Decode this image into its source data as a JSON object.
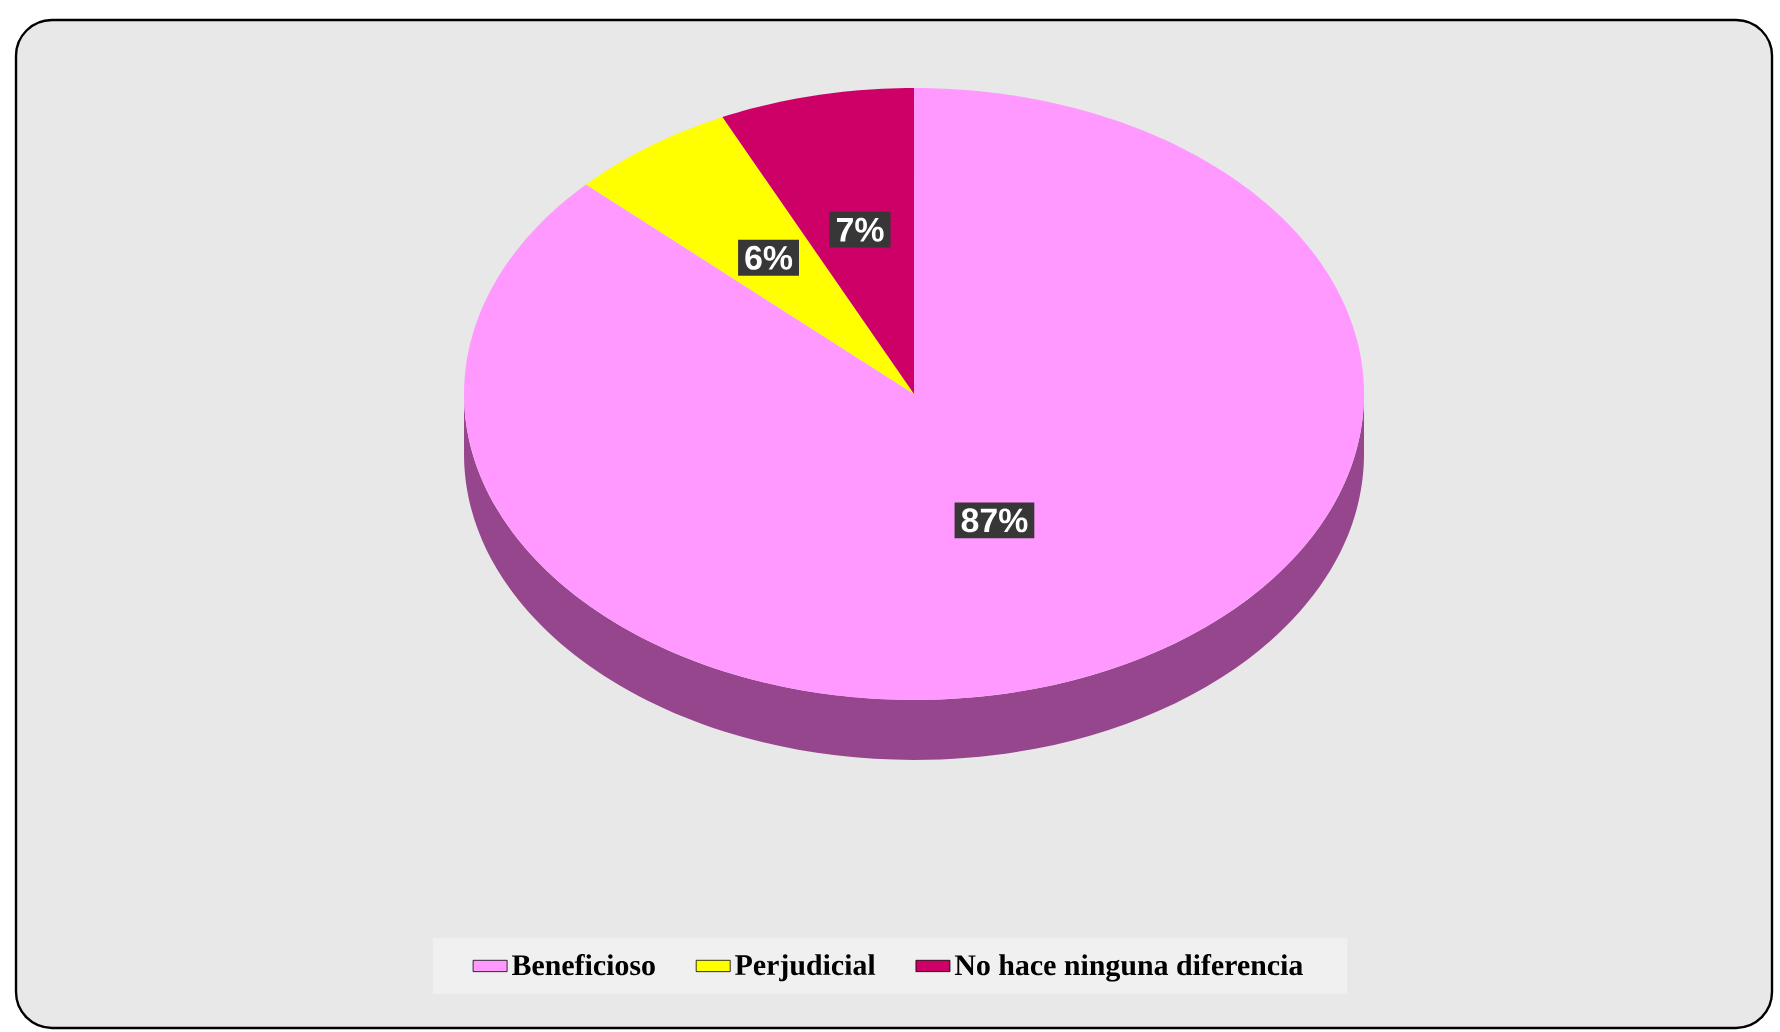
{
  "chart_data": {
    "type": "pie",
    "categories": [
      "Beneficioso",
      "Perjudicial",
      "No hace ninguna diferencia"
    ],
    "values": [
      87,
      6,
      7
    ],
    "colors": [
      "#ff99ff",
      "#ffff00",
      "#cc0066"
    ],
    "value_labels": [
      "87%",
      "6%",
      "7%"
    ],
    "legend": "bottom"
  }
}
